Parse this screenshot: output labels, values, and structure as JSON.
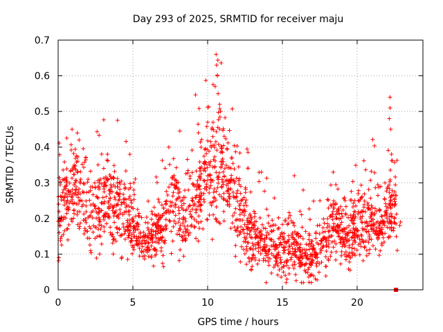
{
  "colors": {
    "series": "#ff0000",
    "grid": "#a0a0a0",
    "axis": "#000000"
  },
  "chart_data": {
    "type": "scatter",
    "title": "Day 293 of 2025, SRMTID for receiver maju",
    "xlabel": "GPS time / hours",
    "ylabel": "SRMTID / TECUs",
    "xlim": [
      0,
      24.4
    ],
    "ylim": [
      0,
      0.7
    ],
    "xticks": [
      0,
      5,
      10,
      15,
      20
    ],
    "xtick_labels": [
      "0",
      "5",
      "10",
      "15",
      "20"
    ],
    "yticks": [
      0,
      0.1,
      0.2,
      0.3,
      0.4,
      0.5,
      0.6,
      0.7
    ],
    "ytick_labels": [
      "0",
      "0.1",
      "0.2",
      "0.3",
      "0.4",
      "0.5",
      "0.6",
      "0.7"
    ],
    "grid": true,
    "marker": "plus",
    "approx_point_count": 2000,
    "envelope_note": "Dense cloud of per-satellite SRMTID samples; envelope below is the estimated typical level with spread and occasional spikes.",
    "envelope": {
      "x": [
        0,
        0.5,
        1,
        1.5,
        2,
        2.5,
        3,
        3.5,
        4,
        4.5,
        5,
        5.5,
        6,
        6.5,
        7,
        7.5,
        8,
        8.5,
        9,
        9.5,
        10,
        10.5,
        11,
        11.5,
        12,
        12.5,
        13,
        13.5,
        14,
        14.5,
        15,
        15.5,
        16,
        16.5,
        17,
        17.5,
        18,
        18.5,
        19,
        19.5,
        20,
        20.5,
        21,
        21.5,
        22,
        22.5,
        22.7
      ],
      "center": [
        0.2,
        0.26,
        0.28,
        0.27,
        0.22,
        0.2,
        0.24,
        0.25,
        0.23,
        0.22,
        0.18,
        0.15,
        0.15,
        0.16,
        0.18,
        0.26,
        0.23,
        0.2,
        0.22,
        0.3,
        0.33,
        0.36,
        0.34,
        0.28,
        0.22,
        0.18,
        0.14,
        0.14,
        0.13,
        0.12,
        0.11,
        0.12,
        0.1,
        0.1,
        0.09,
        0.12,
        0.15,
        0.17,
        0.15,
        0.14,
        0.19,
        0.2,
        0.19,
        0.17,
        0.22,
        0.24,
        0.24
      ],
      "spread": [
        0.07,
        0.07,
        0.07,
        0.07,
        0.06,
        0.06,
        0.07,
        0.07,
        0.06,
        0.06,
        0.05,
        0.04,
        0.04,
        0.05,
        0.05,
        0.07,
        0.06,
        0.05,
        0.06,
        0.08,
        0.09,
        0.1,
        0.09,
        0.08,
        0.07,
        0.06,
        0.05,
        0.05,
        0.05,
        0.05,
        0.05,
        0.05,
        0.04,
        0.04,
        0.04,
        0.04,
        0.05,
        0.05,
        0.05,
        0.05,
        0.05,
        0.06,
        0.05,
        0.05,
        0.05,
        0.06,
        0.06
      ]
    },
    "highlights": [
      {
        "x": 1.4,
        "y": 0.42
      },
      {
        "x": 3.3,
        "y": 0.38
      },
      {
        "x": 7.4,
        "y": 0.4
      },
      {
        "x": 10.0,
        "y": 0.47
      },
      {
        "x": 10.6,
        "y": 0.63
      },
      {
        "x": 10.65,
        "y": 0.6
      },
      {
        "x": 10.7,
        "y": 0.55
      },
      {
        "x": 10.8,
        "y": 0.52
      },
      {
        "x": 10.5,
        "y": 0.57
      },
      {
        "x": 13.6,
        "y": 0.33
      },
      {
        "x": 15.8,
        "y": 0.32
      },
      {
        "x": 18.4,
        "y": 0.33
      },
      {
        "x": 22.2,
        "y": 0.54
      },
      {
        "x": 22.2,
        "y": 0.51
      },
      {
        "x": 22.25,
        "y": 0.45
      },
      {
        "x": 22.3,
        "y": 0.38
      },
      {
        "x": 22.15,
        "y": 0.48
      },
      {
        "x": 22.9,
        "y": 0.19
      },
      {
        "x": 22.85,
        "y": 0.18
      }
    ],
    "low_outliers": [
      {
        "x": 0.05,
        "y": 0.09
      },
      {
        "x": 15.3,
        "y": 0.03
      },
      {
        "x": 16.9,
        "y": 0.04
      }
    ],
    "marker_square": {
      "x": 22.6,
      "y": 0.0
    }
  }
}
